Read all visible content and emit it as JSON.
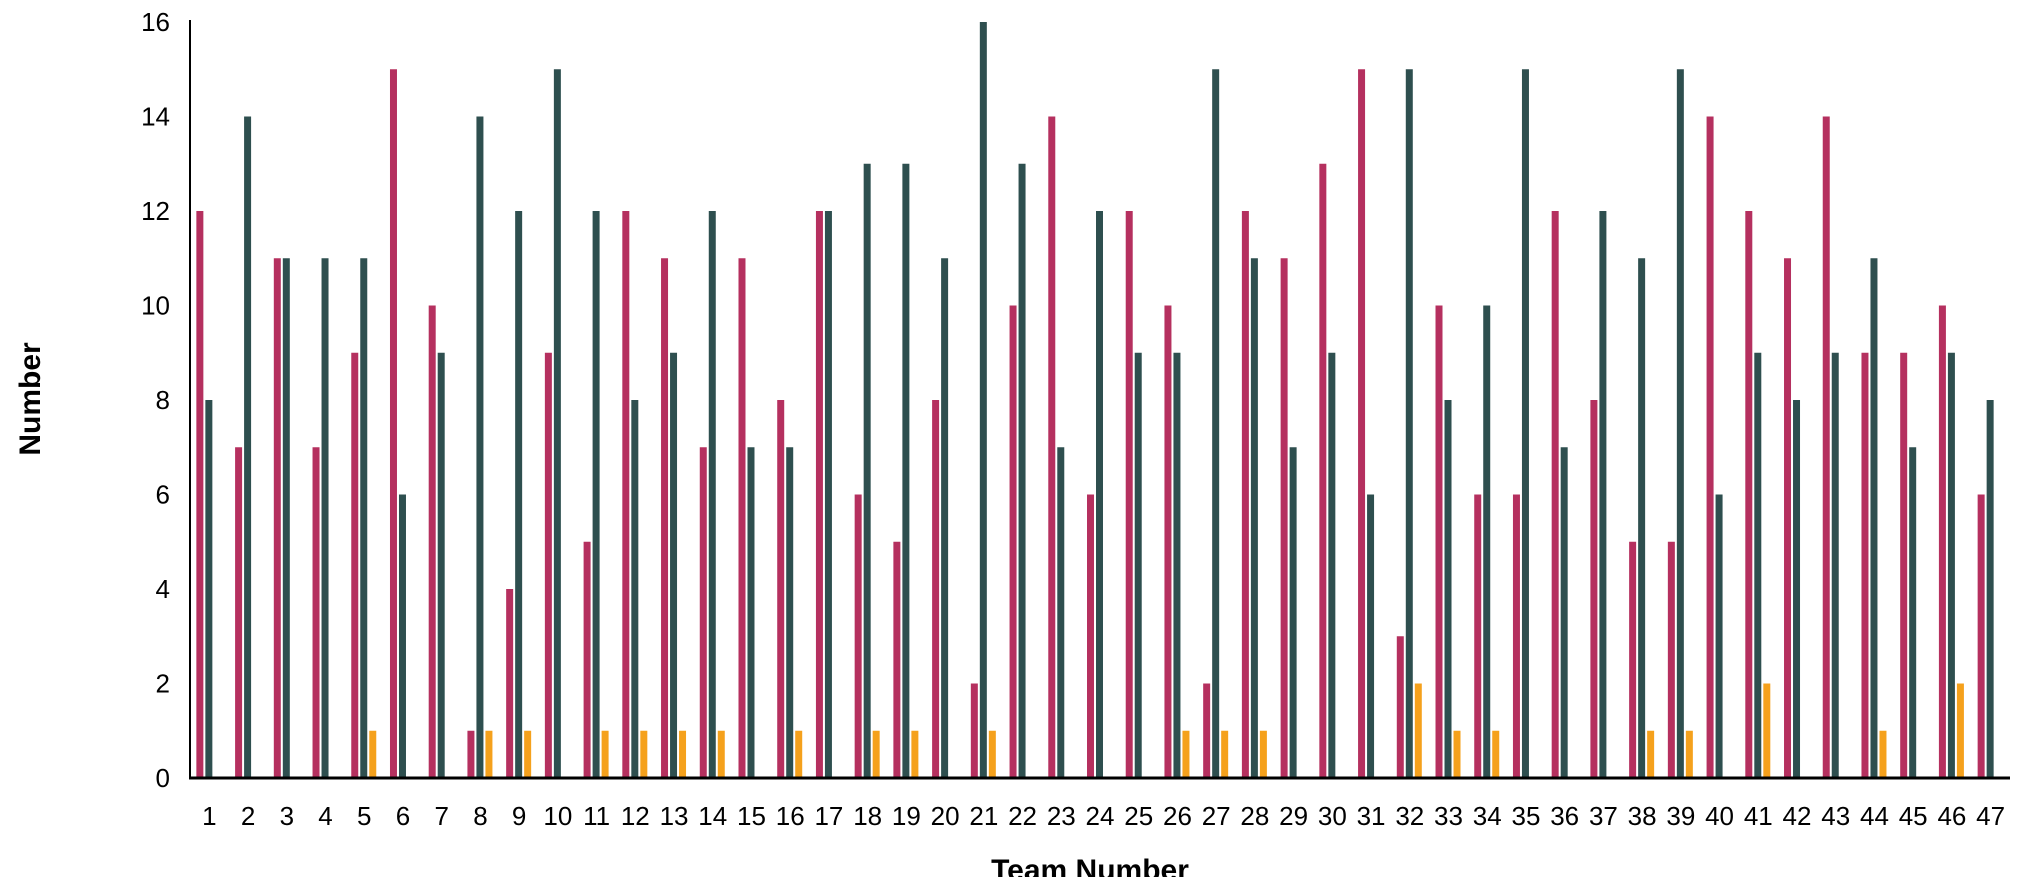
{
  "chart_data": {
    "type": "bar",
    "title": "",
    "xlabel": "Team Number",
    "ylabel": "Number",
    "ylim": [
      0,
      16
    ],
    "y_ticks": [
      0,
      2,
      4,
      6,
      8,
      10,
      12,
      14,
      16
    ],
    "grid": false,
    "legend": "none",
    "categories": [
      "1",
      "2",
      "3",
      "4",
      "5",
      "6",
      "7",
      "8",
      "9",
      "10",
      "11",
      "12",
      "13",
      "14",
      "15",
      "16",
      "17",
      "18",
      "19",
      "20",
      "21",
      "22",
      "23",
      "24",
      "25",
      "26",
      "27",
      "28",
      "29",
      "30",
      "31",
      "32",
      "33",
      "34",
      "35",
      "36",
      "37",
      "38",
      "39",
      "40",
      "41",
      "42",
      "43",
      "44",
      "45",
      "46",
      "47"
    ],
    "series": [
      {
        "color": "#B5305F",
        "values": [
          12,
          7,
          11,
          7,
          9,
          15,
          10,
          1,
          4,
          9,
          5,
          12,
          11,
          7,
          11,
          8,
          12,
          6,
          5,
          8,
          2,
          10,
          14,
          6,
          12,
          10,
          2,
          12,
          11,
          13,
          15,
          3,
          10,
          6,
          6,
          12,
          8,
          5,
          5,
          14,
          12,
          11,
          14,
          9,
          9,
          10,
          6
        ]
      },
      {
        "color": "#2E4F4F",
        "values": [
          8,
          14,
          11,
          11,
          11,
          6,
          9,
          14,
          12,
          15,
          12,
          8,
          9,
          12,
          7,
          7,
          12,
          13,
          13,
          11,
          16,
          13,
          7,
          12,
          9,
          9,
          15,
          11,
          7,
          9,
          6,
          15,
          8,
          10,
          15,
          7,
          12,
          11,
          15,
          6,
          9,
          8,
          9,
          11,
          7,
          9,
          8
        ]
      },
      {
        "color": "#F5A11C",
        "values": [
          0,
          0,
          0,
          0,
          1,
          0,
          0,
          1,
          1,
          0,
          1,
          1,
          1,
          1,
          0,
          1,
          0,
          1,
          1,
          0,
          1,
          0,
          0,
          0,
          0,
          1,
          1,
          1,
          0,
          0,
          0,
          2,
          1,
          1,
          0,
          0,
          0,
          1,
          1,
          0,
          2,
          0,
          0,
          1,
          0,
          2,
          0
        ]
      }
    ]
  }
}
